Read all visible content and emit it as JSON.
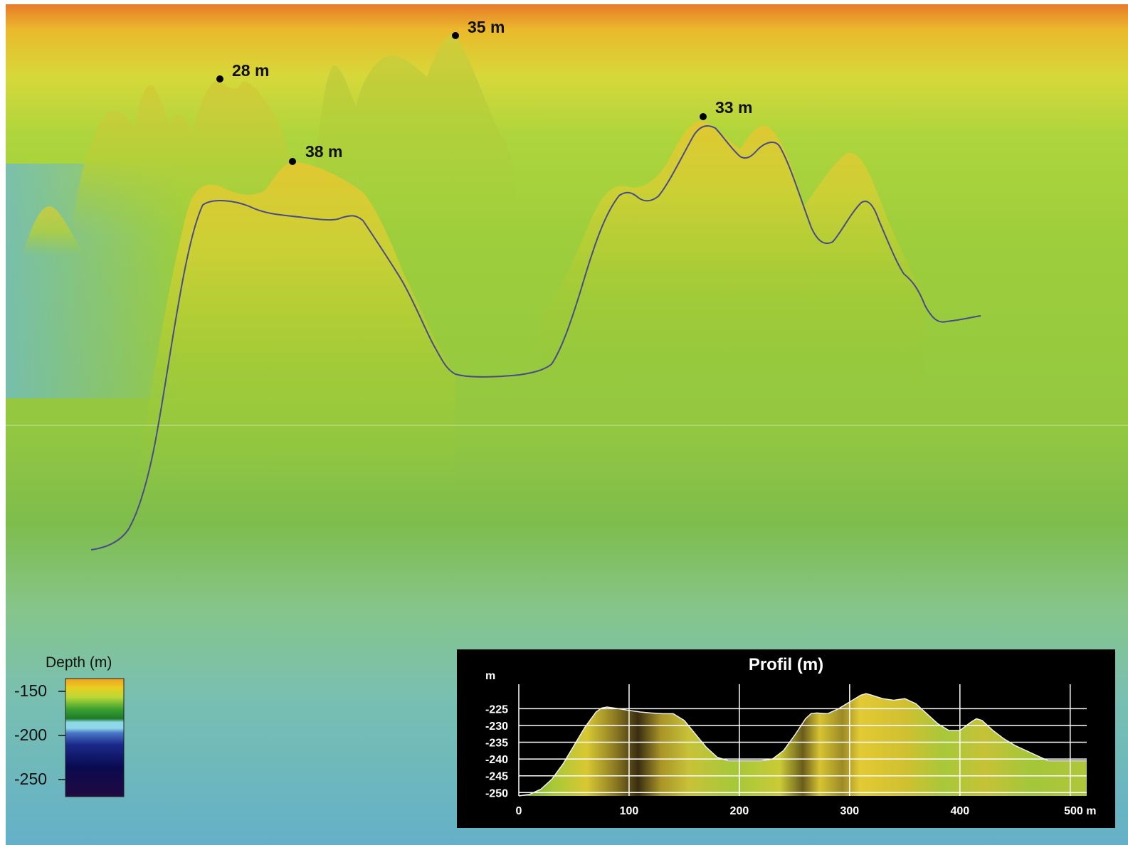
{
  "peaks": [
    {
      "label": "35 m"
    },
    {
      "label": "28 m"
    },
    {
      "label": "33 m"
    },
    {
      "label": "38 m"
    }
  ],
  "legend": {
    "title": "Depth (m)",
    "ticks": [
      "-150",
      "-200",
      "-250"
    ],
    "colors": [
      "#f0a020",
      "#e8d020",
      "#b8d838",
      "#3aa030",
      "#1e7a28",
      "#8fd8e8",
      "#4a78c8",
      "#1a2a8a",
      "#0a0a50",
      "#200a40"
    ]
  },
  "profile": {
    "title": "Profil (m)",
    "y_unit": "m",
    "y_ticks": [
      "-225",
      "-230",
      "-235",
      "-240",
      "-245",
      "-250"
    ],
    "x_ticks": [
      "0",
      "100",
      "200",
      "300",
      "400",
      "500 m"
    ]
  },
  "chart_data": {
    "type": "area",
    "title": "Profil (m)",
    "xlabel": "m",
    "ylabel": "m",
    "xlim": [
      0,
      515
    ],
    "ylim": [
      -251,
      -219
    ],
    "x": [
      0,
      10,
      20,
      30,
      40,
      50,
      60,
      70,
      75,
      80,
      90,
      100,
      110,
      120,
      130,
      140,
      150,
      160,
      170,
      180,
      190,
      200,
      210,
      220,
      230,
      240,
      250,
      260,
      265,
      270,
      280,
      290,
      300,
      310,
      315,
      320,
      330,
      340,
      350,
      360,
      370,
      380,
      390,
      400,
      410,
      415,
      420,
      430,
      440,
      450,
      460,
      470,
      480,
      490,
      500,
      515
    ],
    "y": [
      -251,
      -250.5,
      -249,
      -246,
      -241.5,
      -236,
      -230.5,
      -226,
      -224.8,
      -224.5,
      -225,
      -225.5,
      -226,
      -226.3,
      -226.5,
      -226.5,
      -228.5,
      -232.5,
      -236.5,
      -239.5,
      -240.5,
      -240.5,
      -240.5,
      -240.5,
      -240,
      -237.5,
      -233,
      -228,
      -226.5,
      -226.3,
      -226.5,
      -225,
      -223,
      -221,
      -220.5,
      -221,
      -222,
      -222.5,
      -222,
      -223.5,
      -226.5,
      -229.5,
      -231.5,
      -231.5,
      -229,
      -228,
      -228.5,
      -231.5,
      -234,
      -236,
      -237.5,
      -239,
      -240.5,
      -240.5,
      -240.5,
      -240.5
    ]
  }
}
